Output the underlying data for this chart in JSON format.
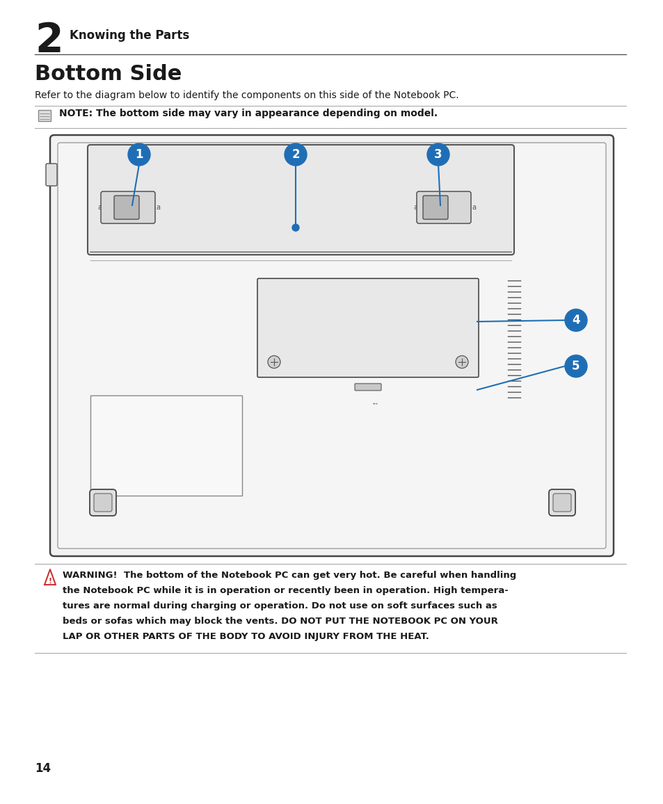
{
  "page_number": "14",
  "chapter_num": "2",
  "chapter_title": "Knowing the Parts",
  "section_title": "Bottom Side",
  "subtitle": "Refer to the diagram below to identify the components on this side of the Notebook PC.",
  "note_text": "NOTE: The bottom side may vary in appearance depending on model.",
  "warning_lines": [
    "WARNING!  The bottom of the Notebook PC can get very hot. Be careful when handling",
    "the Notebook PC while it is in operation or recently been in operation. High tempera-",
    "tures are normal during charging or operation. Do not use on soft surfaces such as",
    "beds or sofas which may block the vents. DO NOT PUT THE NOTEBOOK PC ON YOUR",
    "LAP OR OTHER PARTS OF THE BODY TO AVOID INJURY FROM THE HEAT."
  ],
  "callout_color": "#1f6eb5",
  "bg_color": "#ffffff",
  "text_color": "#1a1a1a",
  "gray_line": "#aaaaaa",
  "dark_line": "#333333"
}
